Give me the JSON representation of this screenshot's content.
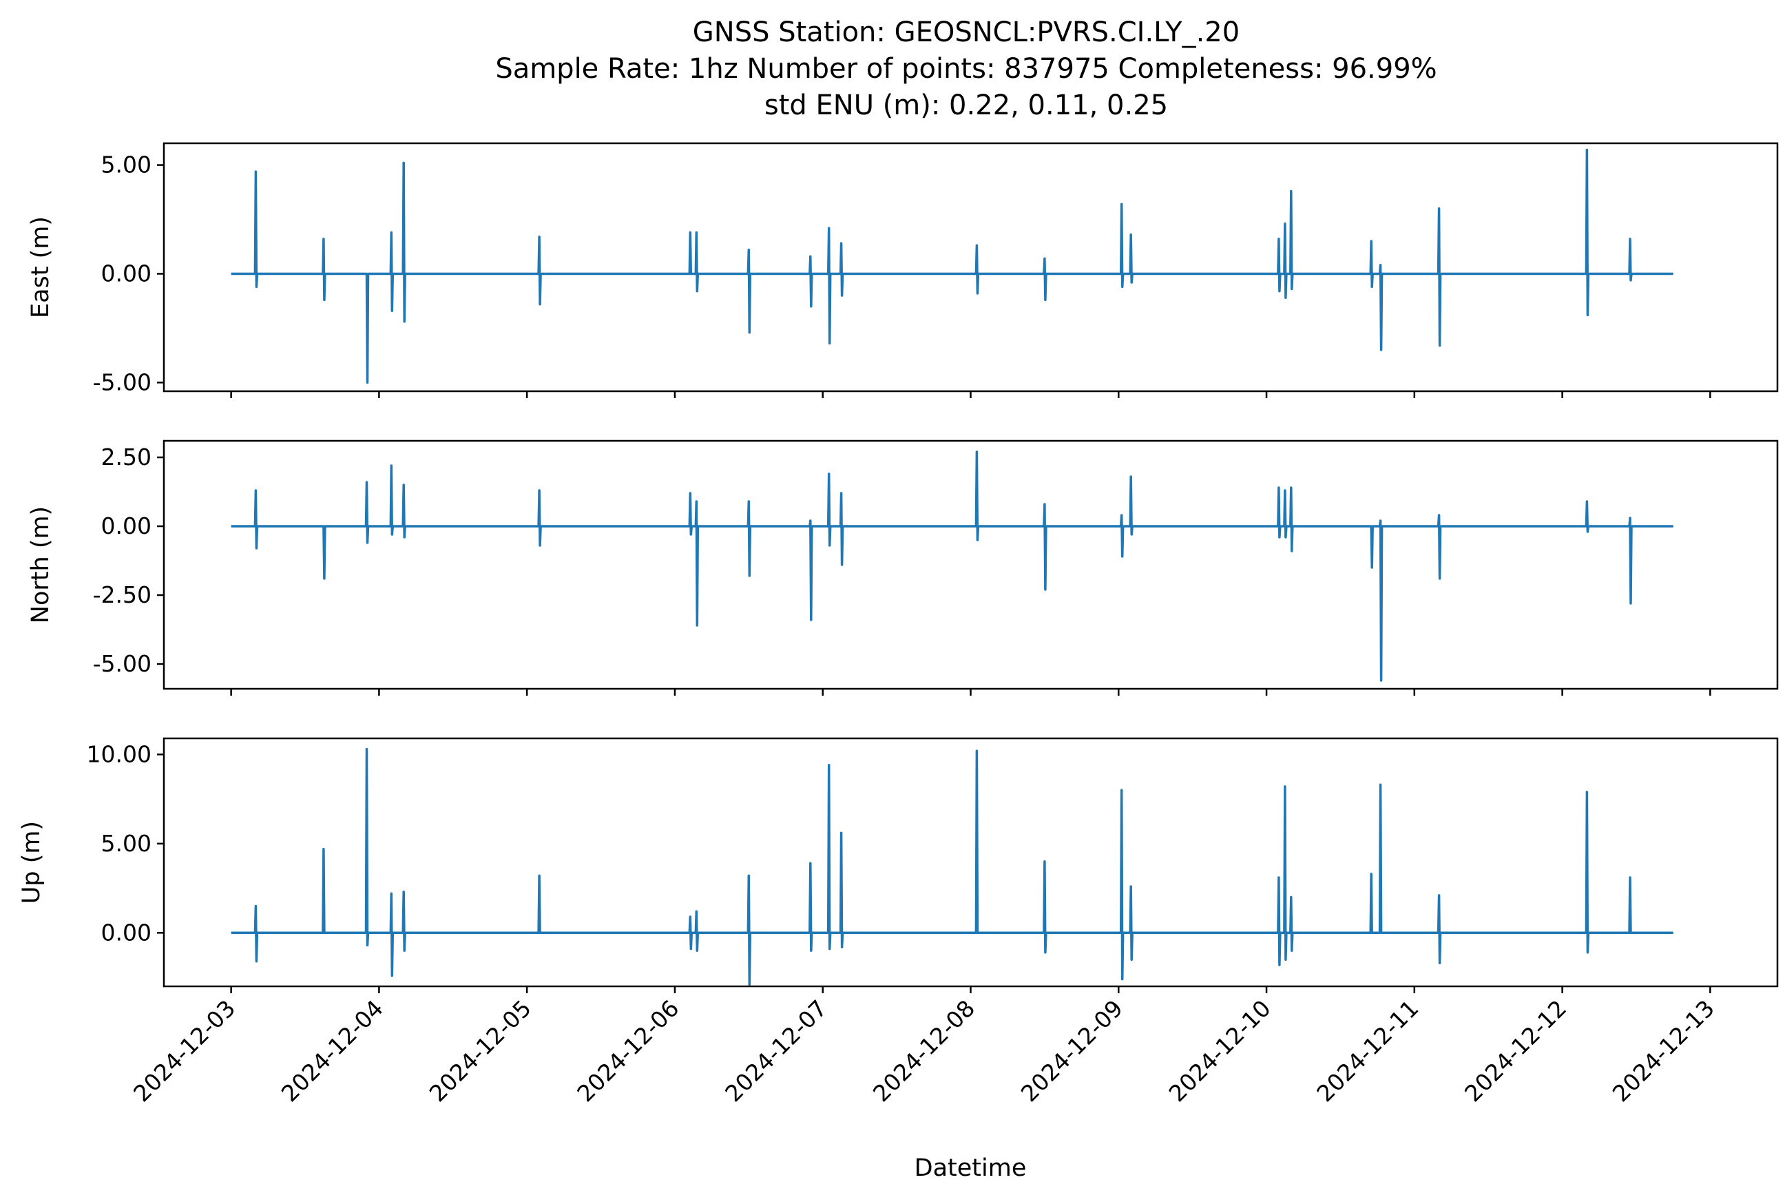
{
  "chart_data": {
    "type": "line",
    "title": [
      "GNSS Station: GEOSNCL:PVRS.CI.LY_.20",
      "Sample Rate: 1hz   Number of points: 837975    Completeness:  96.99%",
      "std ENU (m):  0.22, 0.11, 0.25"
    ],
    "xlabel": "Datetime",
    "x_range": [
      "2024-12-03",
      "2024-12-13"
    ],
    "x_data_range": [
      "2024-12-03T00:00",
      "2024-12-12T18:00"
    ],
    "x_ticks": [
      "2024-12-03",
      "2024-12-04",
      "2024-12-05",
      "2024-12-06",
      "2024-12-07",
      "2024-12-08",
      "2024-12-09",
      "2024-12-10",
      "2024-12-11",
      "2024-12-12",
      "2024-12-13"
    ],
    "line_color": "#1f77b4",
    "legend": null,
    "grid": false,
    "panels": [
      {
        "name": "east",
        "ylabel": "East (m)",
        "ylim": [
          -5.4,
          6.0
        ],
        "y_ticks": [
          5.0,
          0.0,
          -5.0
        ],
        "y_tick_labels": [
          "5.00",
          "0.00",
          "-5.00"
        ],
        "baseline": 0.0,
        "spikes": [
          {
            "t": "2024-12-03T04:00",
            "max": 4.7,
            "min": -0.6
          },
          {
            "t": "2024-12-03T15:00",
            "max": 1.6,
            "min": -1.2
          },
          {
            "t": "2024-12-03T22:00",
            "max": 0.0,
            "min": -5.0
          },
          {
            "t": "2024-12-04T02:00",
            "max": 1.9,
            "min": -1.7
          },
          {
            "t": "2024-12-04T04:00",
            "max": 5.1,
            "min": -2.2
          },
          {
            "t": "2024-12-05T02:00",
            "max": 1.7,
            "min": -1.4
          },
          {
            "t": "2024-12-06T02:30",
            "max": 1.9,
            "min": 0.0
          },
          {
            "t": "2024-12-06T03:30",
            "max": 1.9,
            "min": -0.8
          },
          {
            "t": "2024-12-06T12:00",
            "max": 1.1,
            "min": -2.7
          },
          {
            "t": "2024-12-06T22:00",
            "max": 0.8,
            "min": -1.5
          },
          {
            "t": "2024-12-07T01:00",
            "max": 2.1,
            "min": -3.2
          },
          {
            "t": "2024-12-07T03:00",
            "max": 1.4,
            "min": -1.0
          },
          {
            "t": "2024-12-08T01:00",
            "max": 1.3,
            "min": -0.9
          },
          {
            "t": "2024-12-08T12:00",
            "max": 0.7,
            "min": -1.2
          },
          {
            "t": "2024-12-09T00:30",
            "max": 3.2,
            "min": -0.6
          },
          {
            "t": "2024-12-09T02:00",
            "max": 1.8,
            "min": -0.4
          },
          {
            "t": "2024-12-10T02:00",
            "max": 1.6,
            "min": -0.8
          },
          {
            "t": "2024-12-10T03:00",
            "max": 2.3,
            "min": -1.1
          },
          {
            "t": "2024-12-10T04:00",
            "max": 3.8,
            "min": -0.7
          },
          {
            "t": "2024-12-10T17:00",
            "max": 1.5,
            "min": -0.6
          },
          {
            "t": "2024-12-10T18:30",
            "max": 0.4,
            "min": -3.5
          },
          {
            "t": "2024-12-11T04:00",
            "max": 3.0,
            "min": -3.3
          },
          {
            "t": "2024-12-12T04:00",
            "max": 5.7,
            "min": -1.9
          },
          {
            "t": "2024-12-12T11:00",
            "max": 1.6,
            "min": -0.3
          }
        ]
      },
      {
        "name": "north",
        "ylabel": "North (m)",
        "ylim": [
          -5.9,
          3.1
        ],
        "y_ticks": [
          2.5,
          0.0,
          -2.5,
          -5.0
        ],
        "y_tick_labels": [
          "2.50",
          "0.00",
          "-2.50",
          "-5.00"
        ],
        "baseline": 0.0,
        "spikes": [
          {
            "t": "2024-12-03T04:00",
            "max": 1.3,
            "min": -0.8
          },
          {
            "t": "2024-12-03T15:00",
            "max": 0.0,
            "min": -1.9
          },
          {
            "t": "2024-12-03T22:00",
            "max": 1.6,
            "min": -0.6
          },
          {
            "t": "2024-12-04T02:00",
            "max": 2.2,
            "min": -0.3
          },
          {
            "t": "2024-12-04T04:00",
            "max": 1.5,
            "min": -0.4
          },
          {
            "t": "2024-12-05T02:00",
            "max": 1.3,
            "min": -0.7
          },
          {
            "t": "2024-12-06T02:30",
            "max": 1.2,
            "min": -0.3
          },
          {
            "t": "2024-12-06T03:30",
            "max": 0.9,
            "min": -3.6
          },
          {
            "t": "2024-12-06T12:00",
            "max": 0.9,
            "min": -1.8
          },
          {
            "t": "2024-12-06T22:00",
            "max": 0.2,
            "min": -3.4
          },
          {
            "t": "2024-12-07T01:00",
            "max": 1.9,
            "min": -0.7
          },
          {
            "t": "2024-12-07T03:00",
            "max": 1.2,
            "min": -1.4
          },
          {
            "t": "2024-12-08T01:00",
            "max": 2.7,
            "min": -0.5
          },
          {
            "t": "2024-12-08T12:00",
            "max": 0.8,
            "min": -2.3
          },
          {
            "t": "2024-12-09T00:30",
            "max": 0.4,
            "min": -1.1
          },
          {
            "t": "2024-12-09T02:00",
            "max": 1.8,
            "min": -0.3
          },
          {
            "t": "2024-12-10T02:00",
            "max": 1.4,
            "min": -0.4
          },
          {
            "t": "2024-12-10T03:00",
            "max": 1.3,
            "min": -0.4
          },
          {
            "t": "2024-12-10T04:00",
            "max": 1.4,
            "min": -0.9
          },
          {
            "t": "2024-12-10T17:00",
            "max": 0.0,
            "min": -1.5
          },
          {
            "t": "2024-12-10T18:30",
            "max": 0.2,
            "min": -5.6
          },
          {
            "t": "2024-12-11T04:00",
            "max": 0.4,
            "min": -1.9
          },
          {
            "t": "2024-12-12T04:00",
            "max": 0.9,
            "min": -0.2
          },
          {
            "t": "2024-12-12T11:00",
            "max": 0.3,
            "min": -2.8
          }
        ]
      },
      {
        "name": "up",
        "ylabel": "Up (m)",
        "ylim": [
          -3.0,
          10.9
        ],
        "y_ticks": [
          10.0,
          5.0,
          0.0
        ],
        "y_tick_labels": [
          "10.00",
          "5.00",
          "0.00"
        ],
        "baseline": 0.0,
        "spikes": [
          {
            "t": "2024-12-03T04:00",
            "max": 1.5,
            "min": -1.6
          },
          {
            "t": "2024-12-03T15:00",
            "max": 4.7,
            "min": 0.0
          },
          {
            "t": "2024-12-03T22:00",
            "max": 10.3,
            "min": -0.7
          },
          {
            "t": "2024-12-04T02:00",
            "max": 2.2,
            "min": -2.4
          },
          {
            "t": "2024-12-04T04:00",
            "max": 2.3,
            "min": -1.0
          },
          {
            "t": "2024-12-05T02:00",
            "max": 3.2,
            "min": 0.0
          },
          {
            "t": "2024-12-06T02:30",
            "max": 0.9,
            "min": -0.9
          },
          {
            "t": "2024-12-06T03:30",
            "max": 1.2,
            "min": -1.0
          },
          {
            "t": "2024-12-06T12:00",
            "max": 3.2,
            "min": -2.9
          },
          {
            "t": "2024-12-06T22:00",
            "max": 3.9,
            "min": -1.0
          },
          {
            "t": "2024-12-07T01:00",
            "max": 9.4,
            "min": -0.9
          },
          {
            "t": "2024-12-07T03:00",
            "max": 5.6,
            "min": -0.8
          },
          {
            "t": "2024-12-08T01:00",
            "max": 10.2,
            "min": 0.0
          },
          {
            "t": "2024-12-08T12:00",
            "max": 4.0,
            "min": -1.1
          },
          {
            "t": "2024-12-09T00:30",
            "max": 8.0,
            "min": -2.6
          },
          {
            "t": "2024-12-09T02:00",
            "max": 2.6,
            "min": -1.5
          },
          {
            "t": "2024-12-10T02:00",
            "max": 3.1,
            "min": -1.8
          },
          {
            "t": "2024-12-10T03:00",
            "max": 8.2,
            "min": -1.5
          },
          {
            "t": "2024-12-10T04:00",
            "max": 2.0,
            "min": -1.0
          },
          {
            "t": "2024-12-10T17:00",
            "max": 3.3,
            "min": 0.0
          },
          {
            "t": "2024-12-10T18:30",
            "max": 8.3,
            "min": 0.0
          },
          {
            "t": "2024-12-11T04:00",
            "max": 2.1,
            "min": -1.7
          },
          {
            "t": "2024-12-12T04:00",
            "max": 7.9,
            "min": -1.1
          },
          {
            "t": "2024-12-12T11:00",
            "max": 3.1,
            "min": 0.0
          }
        ]
      }
    ]
  }
}
